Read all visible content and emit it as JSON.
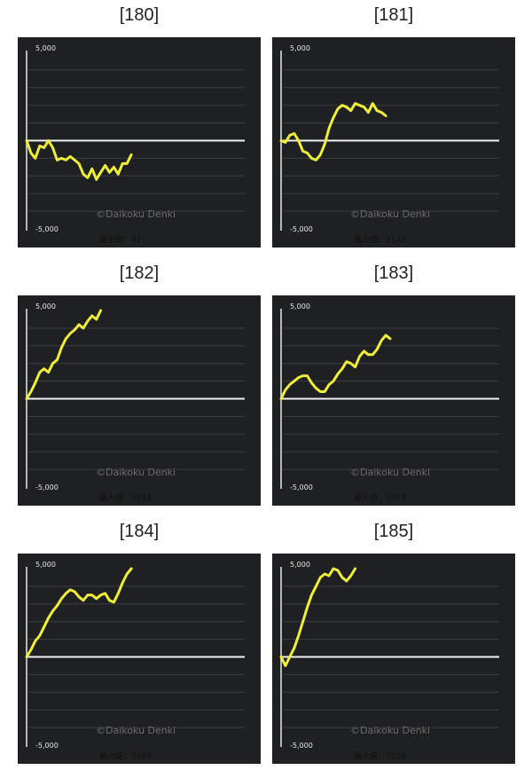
{
  "chart_data": [
    {
      "type": "line",
      "title": "[180]",
      "ylim": [
        -5000,
        5000
      ],
      "yticks": [
        "5,000",
        "-5,000"
      ],
      "watermark": "©Daikoku Denki",
      "max_label": "最大値：91",
      "grid": true,
      "series_color": "#f0ee3a",
      "x": [
        0,
        200,
        400,
        600,
        800,
        1000,
        1200,
        1400,
        1600,
        1800,
        2000,
        2200,
        2400,
        2600,
        2800,
        3000,
        3200,
        3400,
        3600,
        3800,
        4000,
        4200,
        4400,
        4600,
        4800
      ],
      "values": [
        0,
        -700,
        -1000,
        -300,
        -400,
        0,
        -400,
        -1100,
        -1000,
        -1100,
        -900,
        -1100,
        -1300,
        -1900,
        -2100,
        -1600,
        -2200,
        -1800,
        -1400,
        -1800,
        -1500,
        -1900,
        -1300,
        -1300,
        -800
      ]
    },
    {
      "type": "line",
      "title": "[181]",
      "ylim": [
        -5000,
        5000
      ],
      "yticks": [
        "5,000",
        "-5,000"
      ],
      "watermark": "©Daikoku Denki",
      "max_label": "最大値：2142",
      "grid": true,
      "series_color": "#f0ee3a",
      "x": [
        0,
        200,
        400,
        600,
        800,
        1000,
        1200,
        1400,
        1600,
        1800,
        2000,
        2200,
        2400,
        2600,
        2800,
        3000,
        3200,
        3400,
        3600,
        3800,
        4000,
        4200,
        4400,
        4600,
        4800
      ],
      "values": [
        0,
        -100,
        300,
        400,
        0,
        -600,
        -700,
        -1000,
        -1100,
        -800,
        -200,
        700,
        1300,
        1800,
        2000,
        1900,
        1700,
        2100,
        2000,
        1900,
        1600,
        2100,
        1700,
        1600,
        1400
      ]
    },
    {
      "type": "line",
      "title": "[182]",
      "ylim": [
        -5000,
        5000
      ],
      "yticks": [
        "5,000",
        "-5,000"
      ],
      "watermark": "©Daikoku Denki",
      "max_label": "最大値：5918",
      "grid": true,
      "series_color": "#f0ee3a",
      "x": [
        0,
        200,
        400,
        600,
        800,
        1000,
        1200,
        1400,
        1600,
        1800,
        2000,
        2200,
        2400,
        2600,
        2800,
        3000,
        3200,
        3400
      ],
      "values": [
        0,
        400,
        900,
        1500,
        1700,
        1500,
        2000,
        2200,
        2900,
        3400,
        3700,
        3900,
        4200,
        4000,
        4400,
        4700,
        4500,
        5000
      ]
    },
    {
      "type": "line",
      "title": "[183]",
      "ylim": [
        -5000,
        5000
      ],
      "yticks": [
        "5,000",
        "-5,000"
      ],
      "watermark": "©Daikoku Denki",
      "max_label": "最大値：3613",
      "grid": true,
      "series_color": "#f0ee3a",
      "x": [
        0,
        200,
        400,
        600,
        800,
        1000,
        1200,
        1400,
        1600,
        1800,
        2000,
        2200,
        2400,
        2600,
        2800,
        3000,
        3200,
        3400,
        3600,
        3800,
        4000,
        4200,
        4400,
        4600,
        4800,
        5000
      ],
      "values": [
        0,
        500,
        800,
        1000,
        1200,
        1300,
        1300,
        900,
        600,
        400,
        400,
        800,
        1000,
        1400,
        1700,
        2100,
        2000,
        1800,
        2400,
        2700,
        2500,
        2500,
        2800,
        3300,
        3600,
        3400
      ]
    },
    {
      "type": "line",
      "title": "[184]",
      "ylim": [
        -5000,
        5000
      ],
      "yticks": [
        "5,000",
        "-5,000"
      ],
      "watermark": "©Daikoku Denki",
      "max_label": "最大値：5489",
      "grid": true,
      "series_color": "#f0ee3a",
      "x": [
        0,
        200,
        400,
        600,
        800,
        1000,
        1200,
        1400,
        1600,
        1800,
        2000,
        2200,
        2400,
        2600,
        2800,
        3000,
        3200,
        3400,
        3600,
        3800,
        4000,
        4200,
        4400,
        4600,
        4800
      ],
      "values": [
        0,
        400,
        900,
        1200,
        1700,
        2200,
        2600,
        2900,
        3300,
        3600,
        3800,
        3700,
        3400,
        3200,
        3500,
        3500,
        3300,
        3500,
        3600,
        3200,
        3100,
        3600,
        4200,
        4700,
        5000
      ]
    },
    {
      "type": "line",
      "title": "[185]",
      "ylim": [
        -5000,
        5000
      ],
      "yticks": [
        "5,000",
        "-5,000"
      ],
      "watermark": "©Daikoku Denki",
      "max_label": "最大値：7318",
      "grid": true,
      "series_color": "#f0ee3a",
      "x": [
        0,
        200,
        400,
        600,
        800,
        1000,
        1200,
        1400,
        1600,
        1800,
        2000,
        2200,
        2400,
        2600,
        2800,
        3000,
        3200,
        3400
      ],
      "values": [
        0,
        -500,
        0,
        500,
        1200,
        2000,
        2800,
        3500,
        4000,
        4500,
        4700,
        4600,
        5000,
        4900,
        4500,
        4300,
        4600,
        5000
      ]
    }
  ]
}
